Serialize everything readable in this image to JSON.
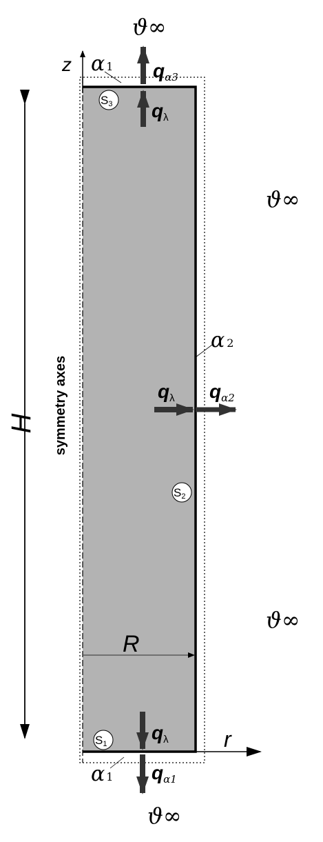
{
  "labels": {
    "axis_z": "z",
    "axis_r": "r",
    "height": "H",
    "radius": "R",
    "symmetry": "symmetry axes",
    "surface_top": "S",
    "surface_top_sub": "3",
    "surface_side": "S",
    "surface_side_sub": "2",
    "surface_bottom": "S",
    "surface_bottom_sub": "1",
    "theta_top": "ϑ∞",
    "theta_right_upper": "ϑ∞",
    "theta_right_lower": "ϑ∞",
    "theta_bottom": "ϑ∞",
    "alpha_top": "α",
    "alpha_top_sub": "1",
    "alpha_side": "α",
    "alpha_side_sub": "2",
    "alpha_bottom": "α",
    "alpha_bottom_sub": "1",
    "q_top_alpha": "q",
    "q_top_alpha_sub": "α3",
    "q_top_lambda": "q",
    "q_top_lambda_sub": "λ",
    "q_side_lambda": "q",
    "q_side_lambda_sub": "λ",
    "q_side_alpha": "q",
    "q_side_alpha_sub": "α2",
    "q_bottom_lambda": "q",
    "q_bottom_lambda_sub": "λ",
    "q_bottom_alpha": "q",
    "q_bottom_alpha_sub": "α1"
  },
  "colors": {
    "body_fill": "#b3b3b3",
    "stroke": "#000000",
    "arrow": "#333333"
  }
}
